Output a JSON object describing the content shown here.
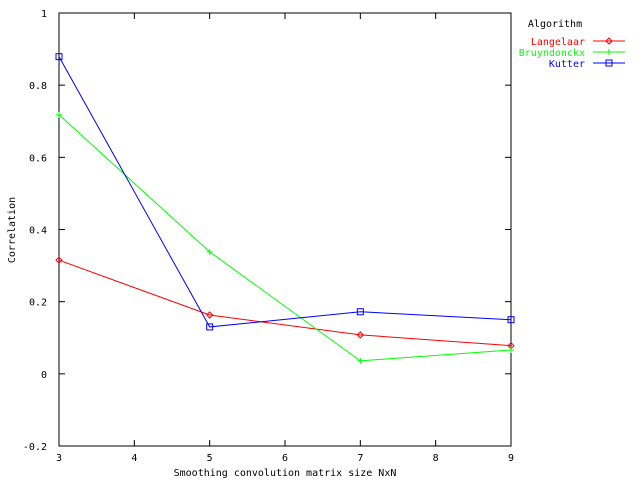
{
  "chart_data": {
    "type": "line",
    "title": "",
    "xlabel": "Smoothing convolution matrix size NxN",
    "ylabel": "Correlation",
    "xlim": [
      3,
      9
    ],
    "ylim": [
      -0.2,
      1
    ],
    "xticks": [
      3,
      4,
      5,
      6,
      7,
      8,
      9
    ],
    "yticks": [
      -0.2,
      0,
      0.2,
      0.4,
      0.6,
      0.8,
      1
    ],
    "grid": false,
    "legend": {
      "title": "Algorithm",
      "position": "top-right, outside plot"
    },
    "x": [
      3,
      5,
      7,
      9
    ],
    "series": [
      {
        "name": "Langelaar",
        "color": "#ff0000",
        "marker": "diamond",
        "values": [
          0.315,
          0.163,
          0.108,
          0.078
        ]
      },
      {
        "name": "Bruyndonckx",
        "color": "#00ff00",
        "marker": "plus",
        "values": [
          0.718,
          0.338,
          0.036,
          0.066
        ]
      },
      {
        "name": "Kutter",
        "color": "#0000ff",
        "marker": "square",
        "values": [
          0.879,
          0.13,
          0.172,
          0.15
        ]
      }
    ]
  }
}
